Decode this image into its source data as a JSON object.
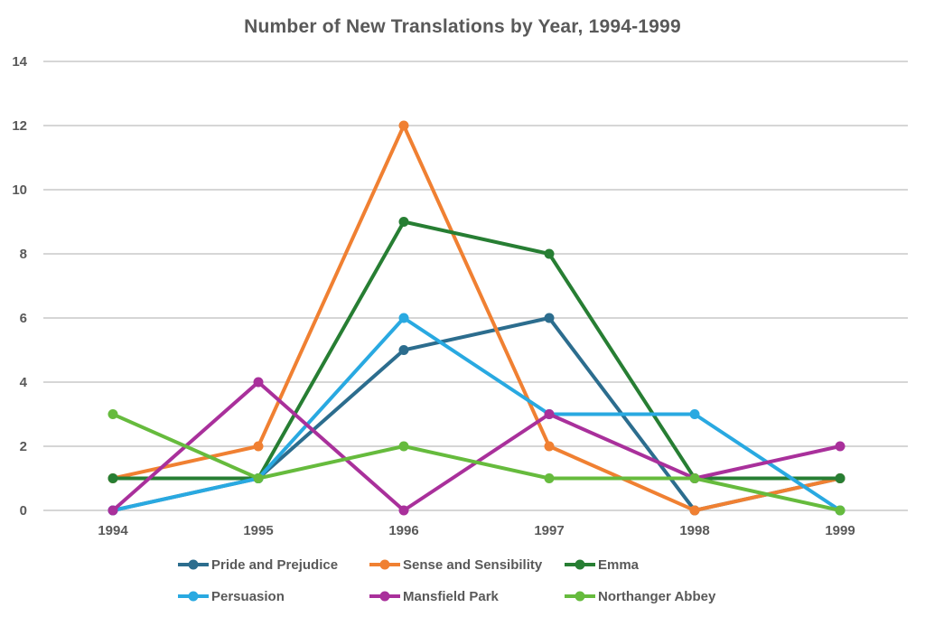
{
  "title": "Number of New Translations by Year, 1994-1999",
  "chart_data": {
    "type": "line",
    "title": "Number of New Translations by Year, 1994-1999",
    "categories": [
      "1994",
      "1995",
      "1996",
      "1997",
      "1998",
      "1999"
    ],
    "series": [
      {
        "name": "Pride and Prejudice",
        "color": "#2c6d8e",
        "values": [
          0,
          1,
          5,
          6,
          0,
          1
        ]
      },
      {
        "name": "Sense and Sensibility",
        "color": "#f08032",
        "values": [
          1,
          2,
          12,
          2,
          0,
          1
        ]
      },
      {
        "name": "Emma",
        "color": "#277e33",
        "values": [
          1,
          1,
          9,
          8,
          1,
          1
        ]
      },
      {
        "name": "Persuasion",
        "color": "#29a9e1",
        "values": [
          0,
          1,
          6,
          3,
          3,
          0
        ]
      },
      {
        "name": "Mansfield Park",
        "color": "#a9309b",
        "values": [
          0,
          4,
          0,
          3,
          1,
          2
        ]
      },
      {
        "name": "Northanger Abbey",
        "color": "#66bb3d",
        "values": [
          3,
          1,
          2,
          1,
          1,
          0
        ]
      }
    ],
    "xlabel": "",
    "ylabel": "",
    "ylim": [
      0,
      14
    ],
    "ytick_step": 2,
    "yticks": [
      0,
      2,
      4,
      6,
      8,
      10,
      12,
      14
    ],
    "grid": true,
    "grid_color": "#d6d6d6",
    "text_color": "#595959",
    "background": "#ffffff",
    "legend_position": "bottom",
    "legend_rows": [
      [
        "Pride and Prejudice",
        "Sense and Sensibility",
        "Emma"
      ],
      [
        "Persuasion",
        "Mansfield Park",
        "Northanger Abbey"
      ]
    ]
  }
}
